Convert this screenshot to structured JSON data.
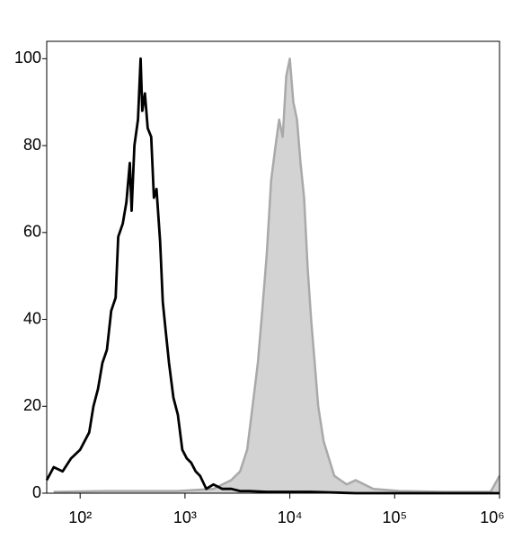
{
  "chart_data": {
    "type": "histogram-overlay",
    "xscale": "log",
    "xlim": [
      48,
      1000000
    ],
    "ylim": [
      0,
      104
    ],
    "xticks": [
      {
        "value": 100,
        "label": "10²"
      },
      {
        "value": 1000,
        "label": "10³"
      },
      {
        "value": 10000,
        "label": "10⁴"
      },
      {
        "value": 100000,
        "label": "10⁵"
      },
      {
        "value": 1000000,
        "label": "10⁶"
      }
    ],
    "yticks": [
      0,
      20,
      40,
      60,
      80,
      100
    ],
    "series": [
      {
        "color": "#a9a9a9",
        "fill_color": "#d3d3d3",
        "filled": true,
        "x": [
          56,
          180,
          855,
          1866,
          2758,
          3352,
          3917,
          4406,
          4955,
          5460,
          6020,
          6637,
          7310,
          7906,
          8550,
          9250,
          10000,
          10810,
          11700,
          12650,
          13680,
          14770,
          15960,
          17260,
          18660,
          20990,
          23600,
          26540,
          34840,
          42360,
          62660,
          112500,
          298700,
          822000,
          1000000
        ],
        "values": [
          0.3,
          0.5,
          0.5,
          1,
          3,
          5,
          10,
          20,
          30,
          42,
          55,
          72,
          80,
          86,
          82,
          96,
          100,
          90,
          86,
          76,
          68,
          52,
          40,
          30,
          20,
          12,
          8,
          4,
          2,
          3,
          1,
          0.5,
          0.3,
          0.3,
          4
        ]
      },
      {
        "color": "#000000",
        "filled": false,
        "x": [
          48,
          56,
          68,
          82,
          100,
          122,
          134,
          148,
          163,
          180,
          198,
          218,
          231,
          255,
          276,
          298,
          310,
          329,
          356,
          377,
          392,
          415,
          441,
          476,
          505,
          535,
          579,
          614,
          651,
          704,
          776,
          855,
          943,
          1040,
          1146,
          1264,
          1393,
          1596,
          1866,
          2269,
          2758,
          3352,
          4074,
          6020,
          15960,
          42360,
          1000000
        ],
        "values": [
          3,
          6,
          5,
          8,
          10,
          14,
          20,
          24,
          30,
          33,
          42,
          45,
          59,
          62,
          67,
          76,
          65,
          80,
          86,
          100,
          88,
          92,
          84,
          82,
          68,
          70,
          58,
          44,
          38,
          30,
          22,
          18,
          10,
          8,
          7,
          5,
          4,
          1,
          2,
          1,
          1,
          0.5,
          0.5,
          0.3,
          0.3,
          0,
          0
        ]
      }
    ]
  }
}
